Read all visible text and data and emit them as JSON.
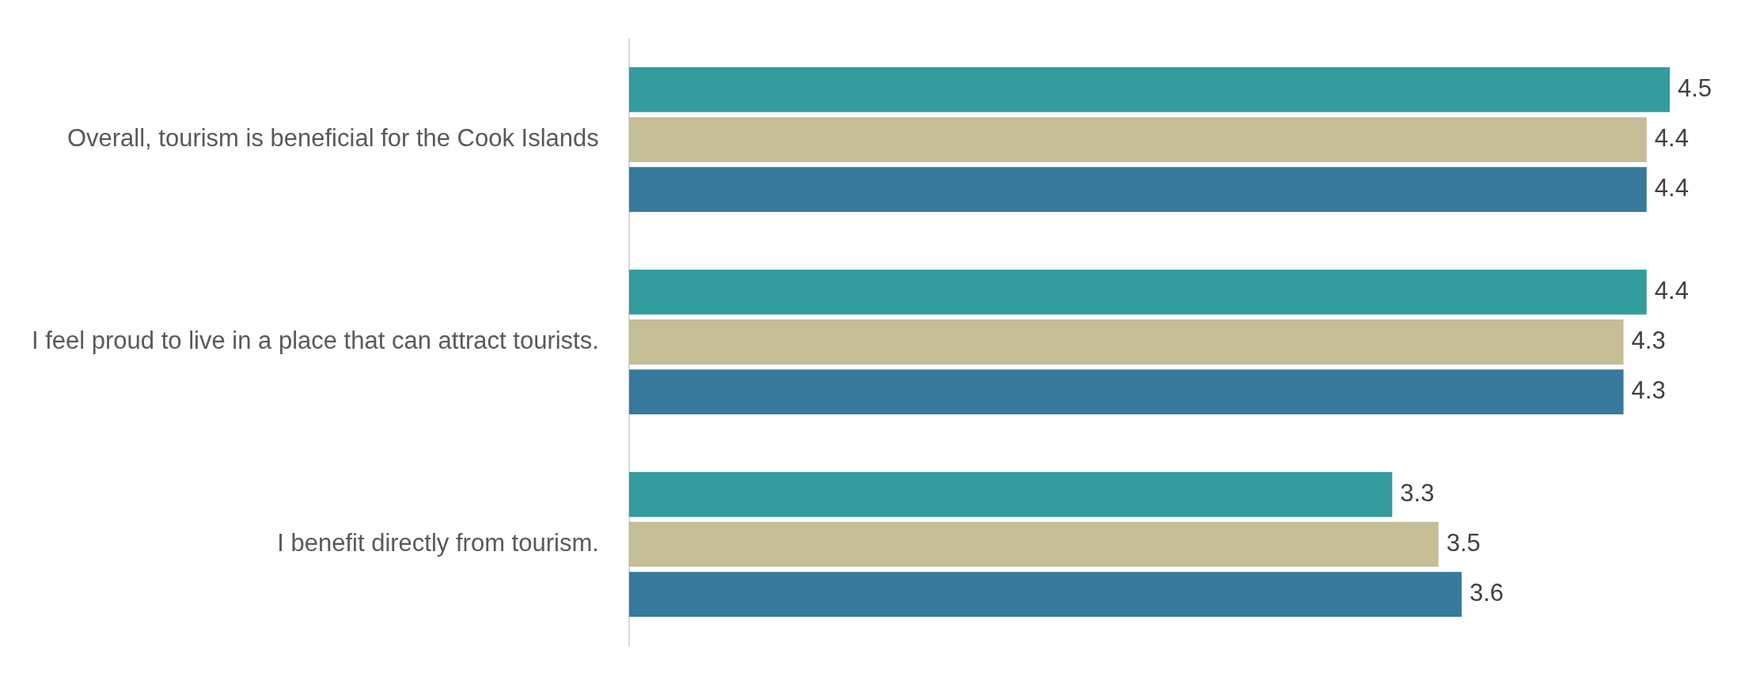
{
  "chart_data": {
    "type": "bar",
    "orientation": "horizontal",
    "categories": [
      "Overall, tourism is beneficial for the Cook Islands",
      "I feel proud to live in a place that can attract tourists.",
      "I benefit directly from tourism."
    ],
    "series": [
      {
        "color": "#339c9c",
        "values": [
          4.5,
          4.4,
          3.3
        ]
      },
      {
        "color": "#c4bd96",
        "values": [
          4.4,
          4.3,
          3.5
        ]
      },
      {
        "color": "#377a9b",
        "values": [
          4.4,
          4.3,
          3.6
        ]
      }
    ],
    "data_labels": true,
    "tick_labels": "y"
  }
}
